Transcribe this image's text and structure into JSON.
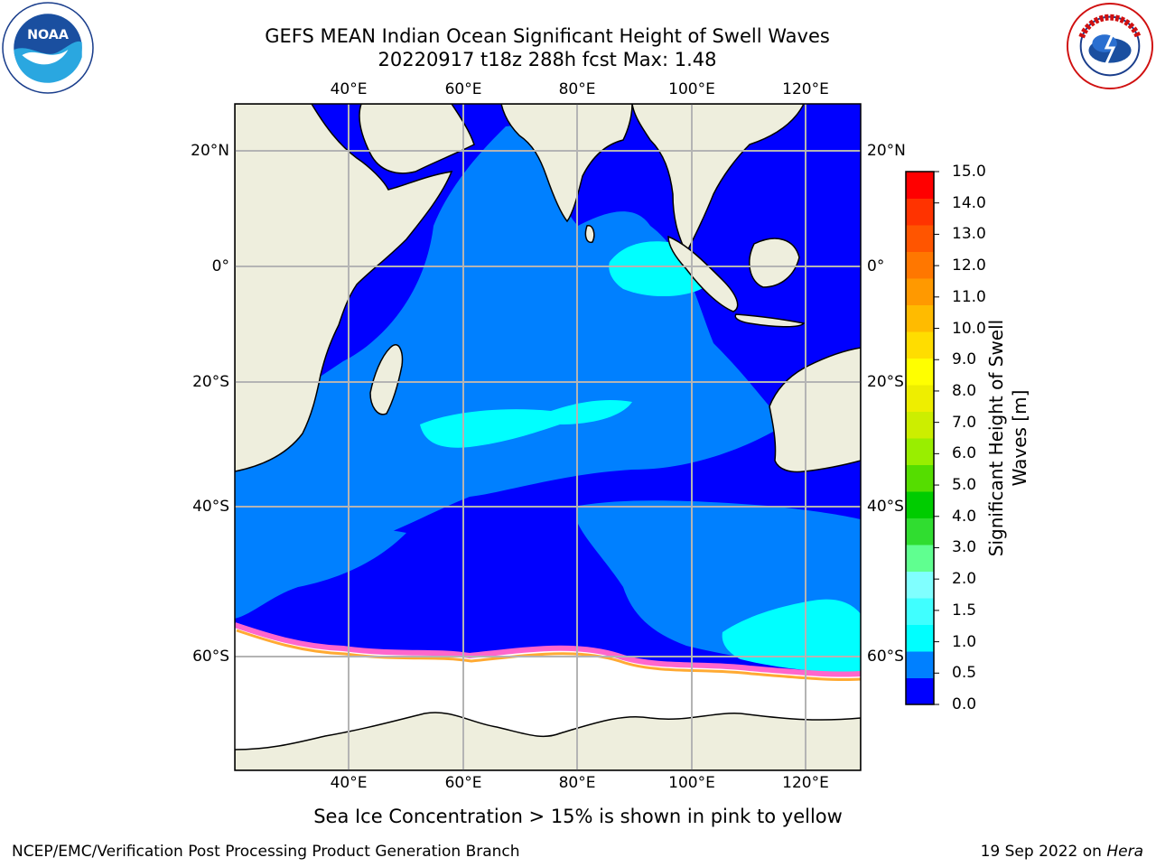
{
  "header": {
    "title": "GEFS MEAN Indian Ocean Significant Height of Swell Waves",
    "subtitle": "20220917 t18z 288h fcst   Max: 1.48"
  },
  "logos": {
    "left": {
      "icon": "noaa-logo",
      "text": "NOAA"
    },
    "right": {
      "icon": "nws-logo",
      "text": "NATIONAL WEATHER SERVICE"
    }
  },
  "map": {
    "lon_labels": [
      "40°E",
      "60°E",
      "80°E",
      "100°E",
      "120°E"
    ],
    "lat_labels": [
      "20°N",
      "0°",
      "20°S",
      "40°S",
      "60°S"
    ],
    "colors": {
      "land": "#eeeedd",
      "sea_ice": "#ffffff",
      "grid": "#b4b4b4",
      "coast": "#000000"
    }
  },
  "colorbar": {
    "label": "Significant Height of Swell Waves [m]",
    "ticks": [
      "0.0",
      "0.5",
      "1.0",
      "1.5",
      "2.0",
      "3.0",
      "4.0",
      "5.0",
      "6.0",
      "7.0",
      "8.0",
      "9.0",
      "10.0",
      "11.0",
      "12.0",
      "13.0",
      "14.0",
      "15.0"
    ],
    "colors": [
      "#0000ff",
      "#0080ff",
      "#00ffff",
      "#40ffff",
      "#80ffff",
      "#60ff90",
      "#30dd30",
      "#00cc00",
      "#55dd00",
      "#99ee00",
      "#ccee00",
      "#eeee00",
      "#ffff00",
      "#ffdd00",
      "#ffbb00",
      "#ff9900",
      "#ff7700",
      "#ff5500",
      "#ff3300",
      "#ff0000"
    ]
  },
  "caption": "Sea Ice Concentration > 15% is shown in pink to yellow",
  "footer": {
    "left": "NCEP/EMC/Verification Post Processing Product Generation Branch",
    "date": "19 Sep 2022 on ",
    "host": "Hera"
  }
}
